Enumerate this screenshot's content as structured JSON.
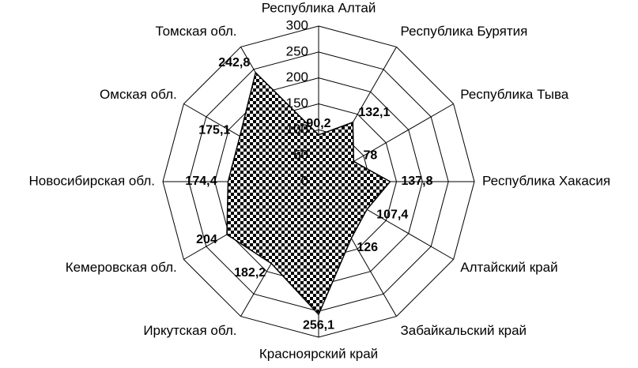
{
  "chart_data": {
    "type": "radar",
    "categories": [
      "Республика Алтай",
      "Республика Бурятия",
      "Республика Тыва",
      "Республика Хакасия",
      "Алтайский край",
      "Забайкальский край",
      "Красноярский край",
      "Иркутская обл.",
      "Кемеровская обл.",
      "Новосибирская обл.",
      "Омская обл.",
      "Томская обл."
    ],
    "values": [
      90.2,
      132.1,
      78,
      137.8,
      107.4,
      126,
      256.1,
      182.2,
      204,
      174.4,
      175.1,
      242.8
    ],
    "value_labels": [
      "90,2",
      "132,1",
      "78",
      "137,8",
      "107,4",
      "126",
      "256,1",
      "182,2",
      "204",
      "174,4",
      "175,1",
      "242,8"
    ],
    "ylim": [
      0,
      300
    ],
    "yticks": [
      0,
      50,
      100,
      150,
      200,
      250,
      300
    ],
    "grid": true,
    "color": "#000000"
  }
}
